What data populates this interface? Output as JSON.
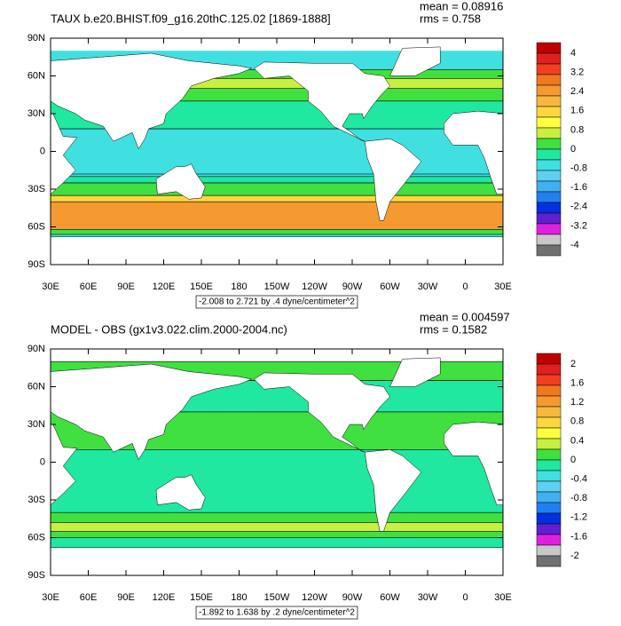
{
  "panels": [
    {
      "title": "TAUX b.e20.BHIST.f09_g16.20thC.125.02 [1869-1888]",
      "stats": [
        "mean = 0.08916",
        "rms = 0.758"
      ],
      "lat_labels": [
        "90N",
        "60N",
        "30N",
        "0",
        "30S",
        "60S",
        "90S"
      ],
      "lon_labels": [
        "30E",
        "60E",
        "90E",
        "120E",
        "150E",
        "180",
        "150W",
        "120W",
        "90W",
        "60W",
        "30W",
        "0",
        "30E"
      ],
      "range_note": "-2.008 to 2.721 by .4 dyne/centimeter^2",
      "colorbar_labels": [
        "4",
        "3.2",
        "2.4",
        "1.6",
        "0.8",
        "0",
        "-0.8",
        "-1.6",
        "-2.4",
        "-3.2",
        "-4"
      ]
    },
    {
      "title": "MODEL - OBS (gx1v3.022.clim.2000-2004.nc)",
      "stats": [
        "mean = 0.004597",
        "rms = 0.1582"
      ],
      "lat_labels": [
        "90N",
        "60N",
        "30N",
        "0",
        "30S",
        "60S",
        "90S"
      ],
      "lon_labels": [
        "30E",
        "60E",
        "90E",
        "120E",
        "150E",
        "180",
        "150W",
        "120W",
        "90W",
        "60W",
        "30W",
        "0",
        "30E"
      ],
      "range_note": "-1.892 to 1.638 by .2 dyne/centimeter^2",
      "colorbar_labels": [
        "2",
        "1.6",
        "1.2",
        "0.8",
        "0.4",
        "0",
        "-0.4",
        "-0.8",
        "-1.2",
        "-1.6",
        "-2"
      ]
    }
  ]
}
